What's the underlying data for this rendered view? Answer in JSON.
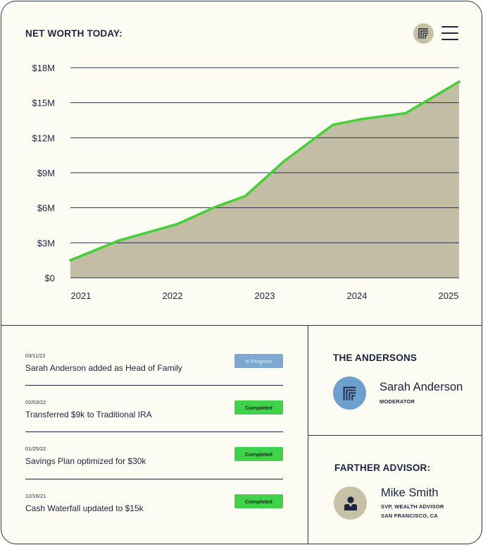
{
  "chart_panel": {
    "title": "NET WORTH TODAY:"
  },
  "chart_data": {
    "type": "area",
    "title": "NET WORTH TODAY:",
    "xlabel": "",
    "ylabel": "",
    "x_ticks": [
      "2021",
      "2022",
      "2023",
      "2024",
      "2025"
    ],
    "y_ticks": [
      "$0",
      "$3M",
      "$6M",
      "$9M",
      "$12M",
      "$15M",
      "$18M"
    ],
    "ylim": [
      0,
      18
    ],
    "xlim": [
      2021.0,
      2025.0
    ],
    "grid": true,
    "legend": "none",
    "series": [
      {
        "x": [
          2021.0,
          2021.5,
          2022.1,
          2022.5,
          2022.8,
          2023.2,
          2023.7,
          2024.0,
          2024.45,
          2025.0
        ],
        "y": [
          1.5,
          3.2,
          4.6,
          6.1,
          7.0,
          10.0,
          13.1,
          13.6,
          14.1,
          16.8
        ],
        "line_color": "#45d038",
        "fill_color": "#c2bda4"
      }
    ]
  },
  "activity": [
    {
      "date": "03/11/22",
      "text": "Sarah Anderson added as Head of Family",
      "status": "In Progress",
      "status_kind": "progress"
    },
    {
      "date": "02/03/22",
      "text": "Transferred $9k to Traditional IRA",
      "status": "Completed",
      "status_kind": "completed"
    },
    {
      "date": "01/25/22",
      "text": "Savings Plan optimized for $30k",
      "status": "Completed",
      "status_kind": "completed"
    },
    {
      "date": "12/16/21",
      "text": "Cash Waterfall updated to $15k",
      "status": "Completed",
      "status_kind": "completed"
    }
  ],
  "family": {
    "title": "THE ANDERSONS",
    "member_name": "Sarah Anderson",
    "member_role": "MODERATOR",
    "avatar_icon": "farther-logo-icon",
    "avatar_color": "#6ea0cf"
  },
  "advisor": {
    "title": "FARTHER ADVISOR:",
    "name": "Mike Smith",
    "role_line1": "SVP, WEALTH ADVISOR",
    "role_line2": "SAN FRANCISCO, CA",
    "avatar_icon": "person-icon",
    "avatar_color": "#c7c1a6"
  },
  "colors": {
    "background": "#fdfcf2",
    "border": "#2a3350",
    "text": "#1b2440",
    "accent_green": "#3fd24a",
    "accent_blue": "#7ea8cf"
  }
}
